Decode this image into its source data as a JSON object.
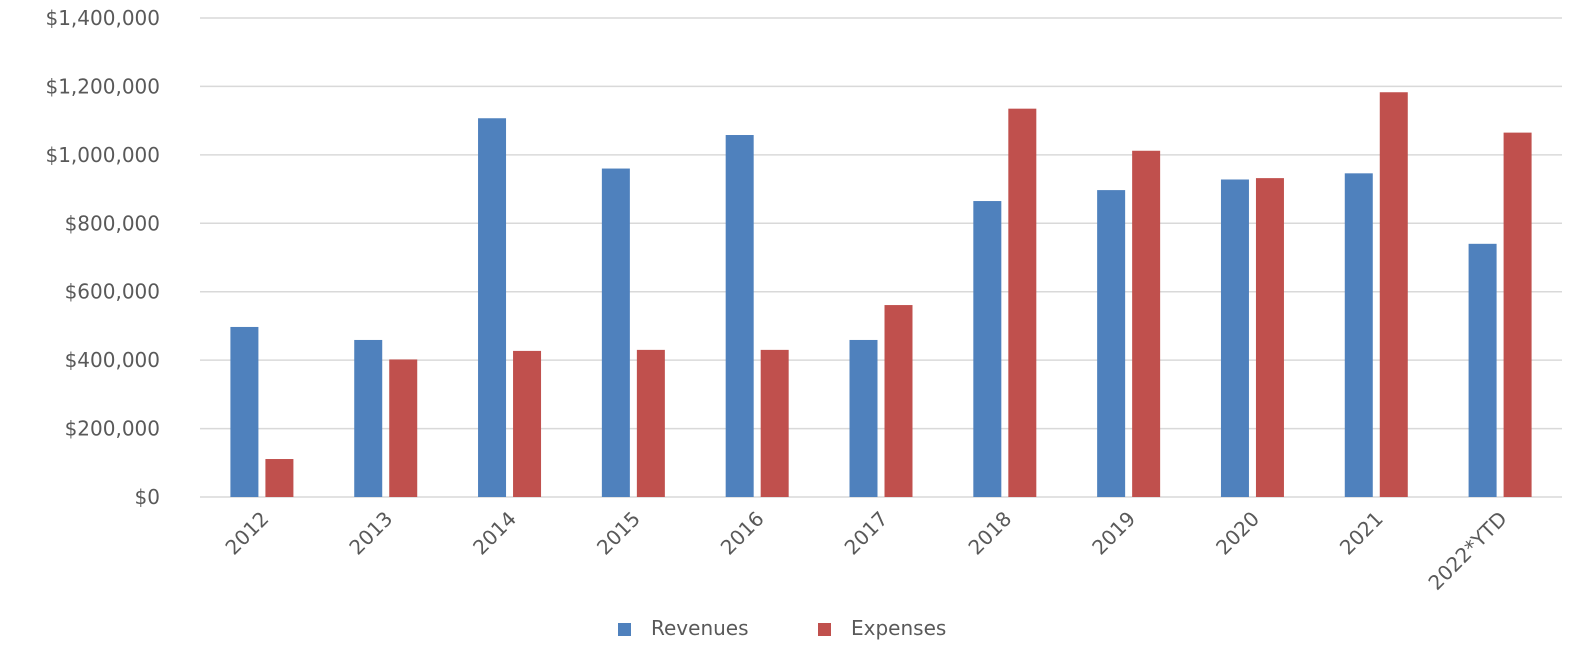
{
  "chart_data": {
    "type": "bar",
    "categories": [
      "2012",
      "2013",
      "2014",
      "2015",
      "2016",
      "2017",
      "2018",
      "2019",
      "2020",
      "2021",
      "2022*YTD"
    ],
    "series": [
      {
        "name": "Revenues",
        "color": "#4f81bd",
        "values": [
          497000,
          459000,
          1107000,
          960000,
          1058000,
          459000,
          865000,
          897000,
          928000,
          946000,
          740000
        ]
      },
      {
        "name": "Expenses",
        "color": "#c0504d",
        "values": [
          111000,
          402000,
          427000,
          430000,
          430000,
          561000,
          1135000,
          1012000,
          932000,
          1183000,
          1065000
        ]
      }
    ],
    "yticks": [
      "$0",
      "$200,000",
      "$400,000",
      "$600,000",
      "$800,000",
      "$1,000,000",
      "$1,200,000",
      "$1,400,000"
    ],
    "ylim": [
      0,
      1400000
    ],
    "title": "",
    "xlabel": "",
    "ylabel": "",
    "grid": true,
    "legend_position": "bottom"
  }
}
